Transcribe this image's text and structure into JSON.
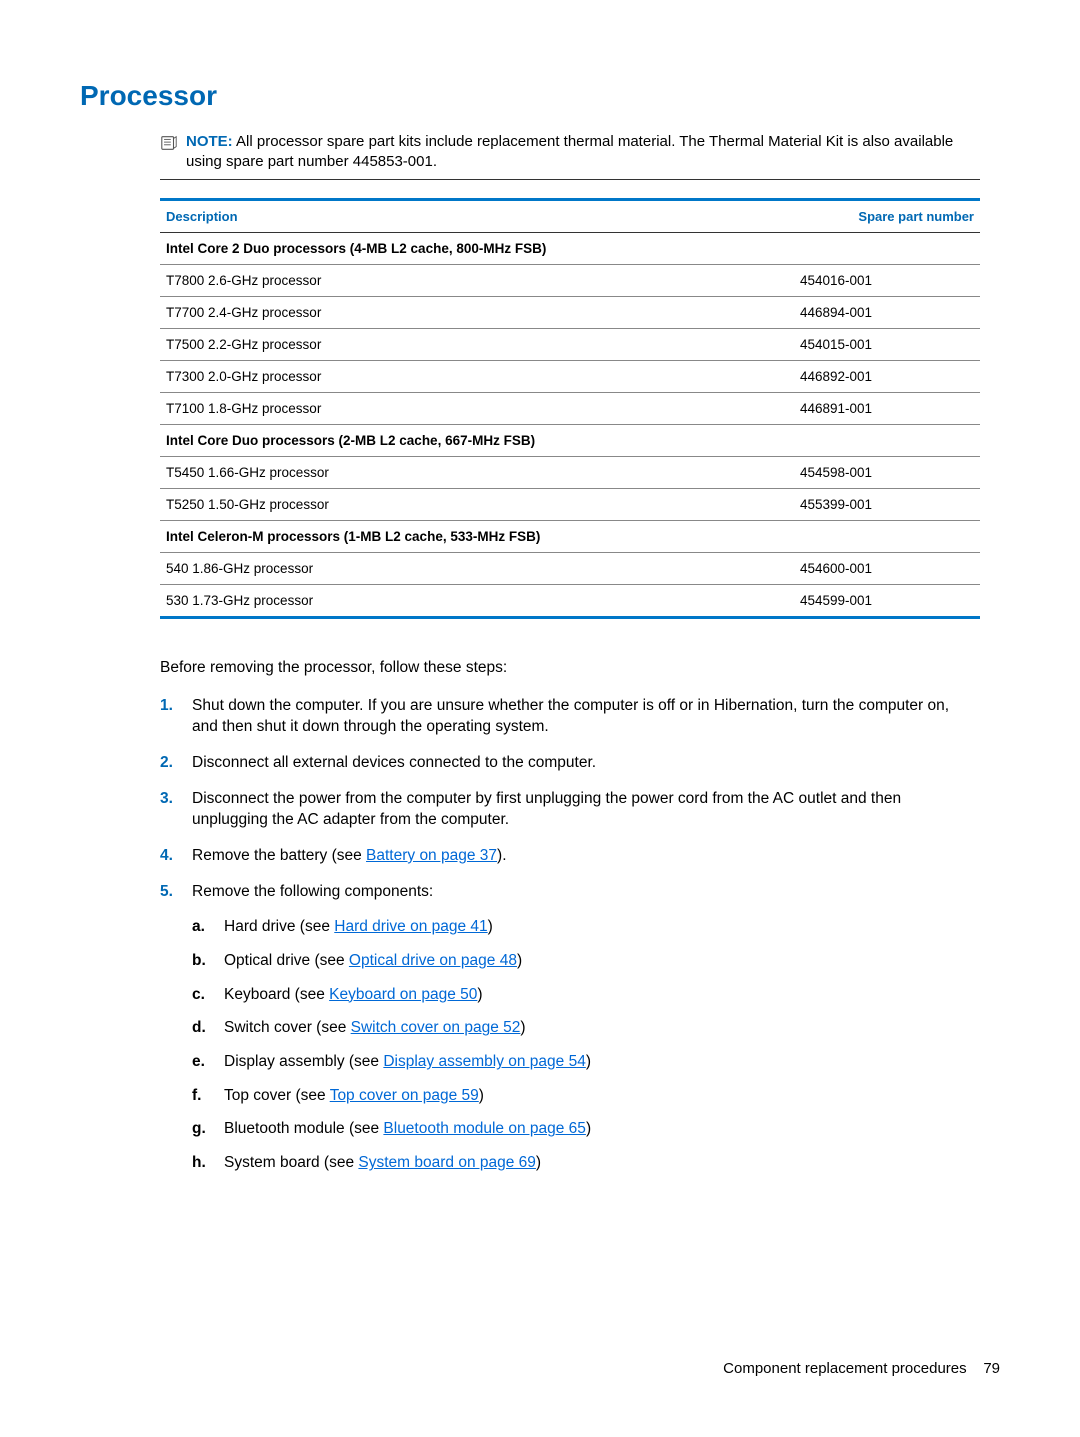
{
  "title": "Processor",
  "note": {
    "label": "NOTE:",
    "text": "All processor spare part kits include replacement thermal material. The Thermal Material Kit is also available using spare part number 445853-001."
  },
  "table": {
    "colors": {
      "header_border": "#0077c8",
      "header_text": "#0068b3",
      "row_border": "#888888",
      "bottom_border": "#0077c8"
    },
    "headers": {
      "description": "Description",
      "part": "Spare part number"
    },
    "rows": [
      {
        "type": "section",
        "desc": "Intel Core 2 Duo processors (4-MB L2 cache, 800-MHz FSB)"
      },
      {
        "type": "item",
        "desc": "T7800 2.6-GHz processor",
        "part": "454016-001"
      },
      {
        "type": "item",
        "desc": "T7700 2.4-GHz processor",
        "part": "446894-001"
      },
      {
        "type": "item",
        "desc": "T7500 2.2-GHz processor",
        "part": "454015-001"
      },
      {
        "type": "item",
        "desc": "T7300 2.0-GHz processor",
        "part": "446892-001"
      },
      {
        "type": "item",
        "desc": "T7100 1.8-GHz processor",
        "part": "446891-001"
      },
      {
        "type": "section",
        "desc": "Intel Core Duo processors (2-MB L2 cache, 667-MHz FSB)"
      },
      {
        "type": "item",
        "desc": "T5450 1.66-GHz processor",
        "part": "454598-001"
      },
      {
        "type": "item",
        "desc": "T5250 1.50-GHz processor",
        "part": "455399-001"
      },
      {
        "type": "section",
        "desc": "Intel Celeron-M processors (1-MB L2 cache, 533-MHz FSB)"
      },
      {
        "type": "item",
        "desc": "540 1.86-GHz processor",
        "part": "454600-001"
      },
      {
        "type": "item",
        "desc": "530 1.73-GHz processor",
        "part": "454599-001"
      }
    ]
  },
  "intro": "Before removing the processor, follow these steps:",
  "steps": [
    {
      "text_before": "Shut down the computer. If you are unsure whether the computer is off or in Hibernation, turn the computer on, and then shut it down through the operating system."
    },
    {
      "text_before": "Disconnect all external devices connected to the computer."
    },
    {
      "text_before": "Disconnect the power from the computer by first unplugging the power cord from the AC outlet and then unplugging the AC adapter from the computer."
    },
    {
      "text_before": "Remove the battery (see ",
      "link": "Battery on page 37",
      "text_after": ")."
    },
    {
      "text_before": "Remove the following components:",
      "subs": [
        {
          "text_before": "Hard drive (see ",
          "link": "Hard drive on page 41",
          "text_after": ")"
        },
        {
          "text_before": "Optical drive (see ",
          "link": "Optical drive on page 48",
          "text_after": ")"
        },
        {
          "text_before": "Keyboard (see ",
          "link": "Keyboard on page 50",
          "text_after": ")"
        },
        {
          "text_before": "Switch cover (see ",
          "link": "Switch cover on page 52",
          "text_after": ")"
        },
        {
          "text_before": "Display assembly (see ",
          "link": "Display assembly on page 54",
          "text_after": ")"
        },
        {
          "text_before": "Top cover (see ",
          "link": "Top cover on page 59",
          "text_after": ")"
        },
        {
          "text_before": "Bluetooth module (see ",
          "link": "Bluetooth module on page 65",
          "text_after": ")"
        },
        {
          "text_before": "System board (see ",
          "link": "System board on page 69",
          "text_after": ")"
        }
      ]
    }
  ],
  "footer": {
    "label": "Component replacement procedures",
    "page": "79"
  }
}
